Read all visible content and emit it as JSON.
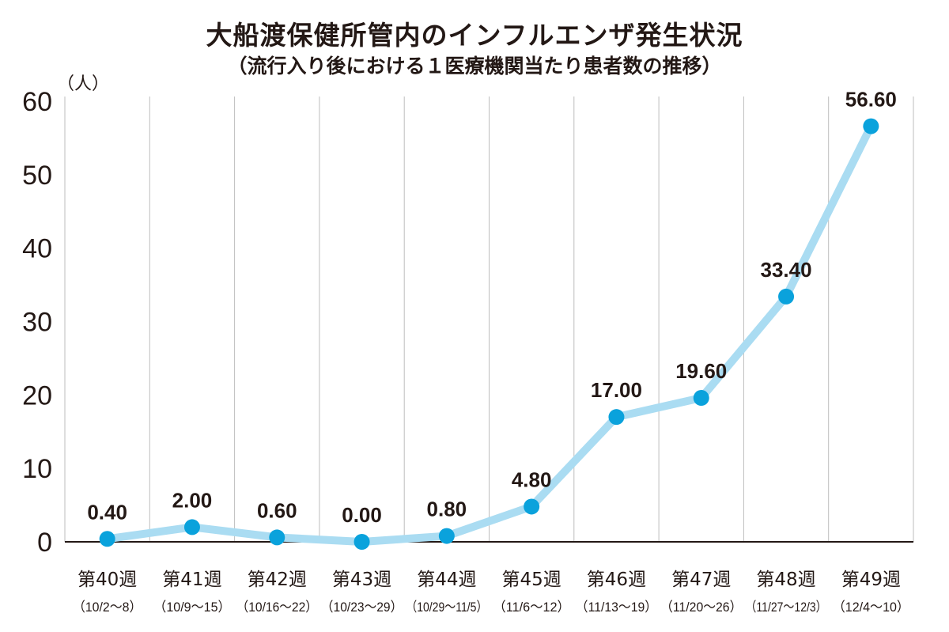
{
  "chart_data": {
    "type": "line",
    "title": "大船渡保健所管内のインフルエンザ発生状況",
    "subtitle": "（流行入り後における１医療機関当たり患者数の推移）",
    "ylabel": "（人）",
    "xlabel": "",
    "ylim": [
      0,
      60
    ],
    "yticks": [
      "0",
      "10",
      "20",
      "30",
      "40",
      "50",
      "60"
    ],
    "grid": "vertical",
    "categories": [
      "第40週",
      "第41週",
      "第42週",
      "第43週",
      "第44週",
      "第45週",
      "第46週",
      "第47週",
      "第48週",
      "第49週"
    ],
    "date_ranges": [
      "（10/2～8）",
      "（10/9～15）",
      "（10/16～22）",
      "（10/23～29）",
      "（10/29～11/5）",
      "（11/6～12）",
      "（11/13～19）",
      "（11/20～26）",
      "（11/27～12/3）",
      "（12/4～10）"
    ],
    "values": [
      0.4,
      2.0,
      0.6,
      0.0,
      0.8,
      4.8,
      17.0,
      19.6,
      33.4,
      56.6
    ],
    "value_labels": [
      "0.40",
      "2.00",
      "0.60",
      "0.00",
      "0.80",
      "4.80",
      "17.00",
      "19.60",
      "33.40",
      "56.60"
    ],
    "colors": {
      "line": "#aadcf2",
      "marker": "#0aa2dc",
      "grid": "#bdbdbd",
      "axis": "#231815"
    }
  }
}
